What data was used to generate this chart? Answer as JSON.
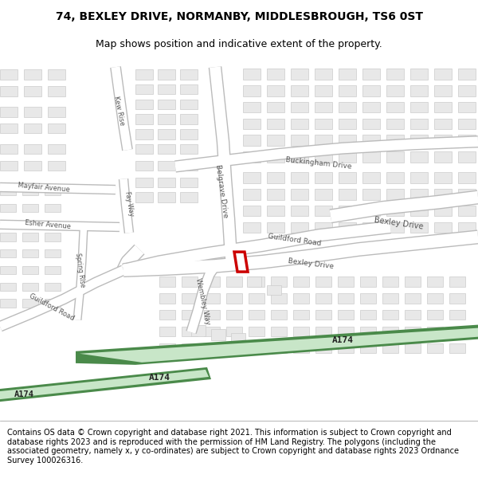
{
  "title_line1": "74, BEXLEY DRIVE, NORMANBY, MIDDLESBROUGH, TS6 0ST",
  "title_line2": "Map shows position and indicative extent of the property.",
  "copyright_text": "Contains OS data © Crown copyright and database right 2021. This information is subject to Crown copyright and database rights 2023 and is reproduced with the permission of HM Land Registry. The polygons (including the associated geometry, namely x, y co-ordinates) are subject to Crown copyright and database rights 2023 Ordnance Survey 100026316.",
  "bg_color": "#ffffff",
  "map_bg": "#ffffff",
  "road_green_dark": "#4a8a4a",
  "road_green_light": "#c8e6c8",
  "road_fill": "#ffffff",
  "road_outline": "#bbbbbb",
  "building_fill": "#e8e8e8",
  "building_outline": "#cccccc",
  "property_fill": "#ffffff",
  "property_outline": "#cc0000",
  "street_text_color": "#555555",
  "a174_text_color": "#222222",
  "title_fontsize": 10,
  "subtitle_fontsize": 9,
  "copyright_fontsize": 7.0
}
